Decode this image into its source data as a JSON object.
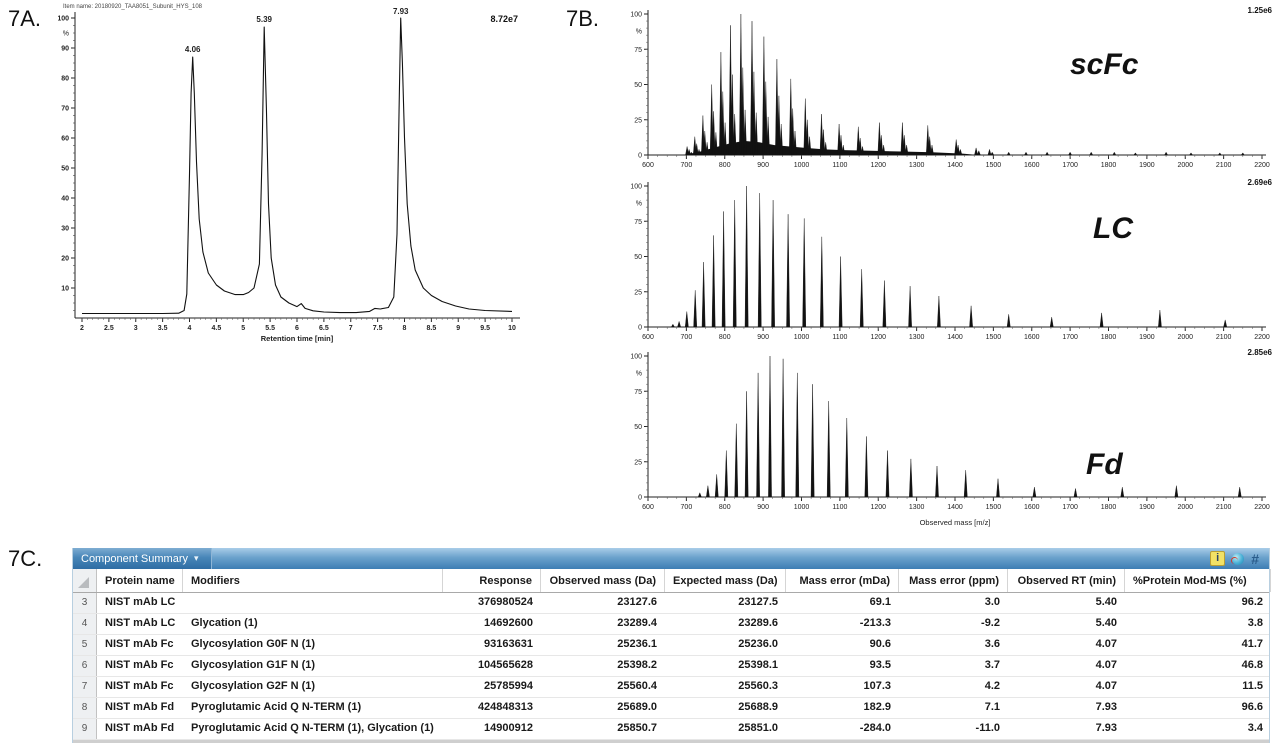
{
  "panels": {
    "a_label": "7A.",
    "b_label": "7B.",
    "c_label": "7C."
  },
  "chart_data": [
    {
      "type": "line",
      "kind": "chromatogram",
      "title": "Item name: 20180920_TAA8051_Subunit_HYS_108",
      "intensity_label": "8.72e7",
      "xlabel": "Retention time [min]",
      "ylabel": "%",
      "xlim": [
        2,
        10
      ],
      "ylim": [
        0,
        100
      ],
      "xticks": [
        2,
        2.5,
        3,
        3.5,
        4,
        4.5,
        5,
        5.5,
        6,
        6.5,
        7,
        7.5,
        8,
        8.5,
        9,
        9.5,
        10
      ],
      "yticks": [
        10,
        20,
        30,
        40,
        50,
        60,
        70,
        80,
        90,
        100
      ],
      "peak_labels": [
        {
          "x": 4.06,
          "y": 87,
          "label": "4.06"
        },
        {
          "x": 5.39,
          "y": 97,
          "label": "5.39"
        },
        {
          "x": 7.93,
          "y": 100,
          "label": "7.93"
        }
      ],
      "points": [
        [
          2.0,
          1.5
        ],
        [
          2.5,
          1.5
        ],
        [
          3.0,
          1.5
        ],
        [
          3.5,
          1.5
        ],
        [
          3.8,
          1.6
        ],
        [
          3.9,
          2.5
        ],
        [
          3.95,
          8
        ],
        [
          4.0,
          48
        ],
        [
          4.03,
          75
        ],
        [
          4.06,
          87
        ],
        [
          4.09,
          75
        ],
        [
          4.13,
          52
        ],
        [
          4.18,
          33
        ],
        [
          4.25,
          22
        ],
        [
          4.35,
          15
        ],
        [
          4.5,
          11
        ],
        [
          4.65,
          9
        ],
        [
          4.85,
          7.8
        ],
        [
          5.0,
          7.8
        ],
        [
          5.1,
          8.5
        ],
        [
          5.2,
          10
        ],
        [
          5.3,
          18
        ],
        [
          5.35,
          55
        ],
        [
          5.39,
          97
        ],
        [
          5.43,
          70
        ],
        [
          5.47,
          38
        ],
        [
          5.52,
          20
        ],
        [
          5.6,
          11
        ],
        [
          5.7,
          7
        ],
        [
          5.85,
          5
        ],
        [
          6.0,
          3.8
        ],
        [
          6.08,
          4.8
        ],
        [
          6.15,
          3.2
        ],
        [
          6.3,
          2.4
        ],
        [
          6.5,
          2.0
        ],
        [
          6.8,
          1.8
        ],
        [
          7.1,
          1.8
        ],
        [
          7.35,
          2.2
        ],
        [
          7.45,
          3.2
        ],
        [
          7.55,
          3.0
        ],
        [
          7.7,
          3.5
        ],
        [
          7.8,
          7
        ],
        [
          7.86,
          28
        ],
        [
          7.9,
          70
        ],
        [
          7.93,
          100
        ],
        [
          7.96,
          85
        ],
        [
          8.0,
          60
        ],
        [
          8.05,
          38
        ],
        [
          8.12,
          24
        ],
        [
          8.2,
          16
        ],
        [
          8.35,
          10
        ],
        [
          8.5,
          7.5
        ],
        [
          8.7,
          5.5
        ],
        [
          8.95,
          4
        ],
        [
          9.2,
          3
        ],
        [
          9.5,
          2.5
        ],
        [
          10.0,
          2.2
        ]
      ]
    },
    {
      "type": "line",
      "kind": "mass_spectrum",
      "name": "scFc",
      "intensity_label": "1.25e6",
      "ylabel": "%",
      "xlim": [
        600,
        2200
      ],
      "ylim": [
        0,
        100
      ],
      "xtick_step": 100,
      "yticks": [
        0,
        25,
        50,
        75,
        100
      ],
      "baseline_hump": [
        [
          690,
          0
        ],
        [
          730,
          2
        ],
        [
          770,
          5
        ],
        [
          810,
          8
        ],
        [
          850,
          10
        ],
        [
          890,
          9
        ],
        [
          930,
          7
        ],
        [
          970,
          6
        ],
        [
          1010,
          5
        ],
        [
          1060,
          4
        ],
        [
          1110,
          3.5
        ],
        [
          1180,
          3
        ],
        [
          1260,
          2.5
        ],
        [
          1340,
          2
        ],
        [
          1420,
          1
        ],
        [
          1460,
          0
        ]
      ],
      "peaks": [
        [
          702,
          6
        ],
        [
          707,
          4
        ],
        [
          713,
          2
        ],
        [
          722,
          13
        ],
        [
          727,
          8
        ],
        [
          733,
          4
        ],
        [
          743,
          28
        ],
        [
          748,
          17
        ],
        [
          754,
          9
        ],
        [
          766,
          50
        ],
        [
          771,
          31
        ],
        [
          777,
          16
        ],
        [
          790,
          73
        ],
        [
          795,
          45
        ],
        [
          801,
          23
        ],
        [
          815,
          92
        ],
        [
          820,
          57
        ],
        [
          826,
          29
        ],
        [
          842,
          100
        ],
        [
          847,
          62
        ],
        [
          853,
          32
        ],
        [
          871,
          95
        ],
        [
          876,
          59
        ],
        [
          882,
          30
        ],
        [
          902,
          84
        ],
        [
          907,
          52
        ],
        [
          913,
          27
        ],
        [
          936,
          68
        ],
        [
          941,
          42
        ],
        [
          947,
          22
        ],
        [
          972,
          54
        ],
        [
          977,
          33
        ],
        [
          983,
          17
        ],
        [
          1010,
          40
        ],
        [
          1015,
          25
        ],
        [
          1021,
          13
        ],
        [
          1052,
          29
        ],
        [
          1057,
          18
        ],
        [
          1063,
          9
        ],
        [
          1098,
          22
        ],
        [
          1103,
          14
        ],
        [
          1109,
          7
        ],
        [
          1148,
          20
        ],
        [
          1153,
          12
        ],
        [
          1159,
          6
        ],
        [
          1203,
          23
        ],
        [
          1208,
          14
        ],
        [
          1214,
          7
        ],
        [
          1263,
          23
        ],
        [
          1268,
          14
        ],
        [
          1274,
          7
        ],
        [
          1329,
          21
        ],
        [
          1334,
          13
        ],
        [
          1340,
          7
        ],
        [
          1403,
          11
        ],
        [
          1408,
          7
        ],
        [
          1414,
          4
        ],
        [
          1455,
          5
        ],
        [
          1462,
          3
        ],
        [
          1490,
          4
        ],
        [
          1497,
          2
        ],
        [
          1540,
          2
        ],
        [
          1585,
          2
        ],
        [
          1640,
          2
        ],
        [
          1700,
          2
        ],
        [
          1755,
          2
        ],
        [
          1815,
          2
        ],
        [
          1870,
          1.5
        ],
        [
          1950,
          2
        ],
        [
          2015,
          1.5
        ],
        [
          2090,
          1.5
        ],
        [
          2150,
          1.5
        ]
      ]
    },
    {
      "type": "line",
      "kind": "mass_spectrum",
      "name": "LC",
      "intensity_label": "2.69e6",
      "ylabel": "%",
      "xlim": [
        600,
        2200
      ],
      "ylim": [
        0,
        100
      ],
      "xtick_step": 100,
      "yticks": [
        0,
        25,
        50,
        75,
        100
      ],
      "peaks": [
        [
          665,
          2
        ],
        [
          681,
          4
        ],
        [
          701,
          11
        ],
        [
          723,
          26
        ],
        [
          745,
          46
        ],
        [
          771,
          65
        ],
        [
          797,
          82
        ],
        [
          826,
          90
        ],
        [
          857,
          100
        ],
        [
          891,
          95
        ],
        [
          926,
          90
        ],
        [
          965,
          80
        ],
        [
          1007,
          77
        ],
        [
          1053,
          64
        ],
        [
          1102,
          50
        ],
        [
          1157,
          41
        ],
        [
          1216,
          33
        ],
        [
          1283,
          29
        ],
        [
          1358,
          22
        ],
        [
          1442,
          15
        ],
        [
          1540,
          9
        ],
        [
          1652,
          7
        ],
        [
          1782,
          10
        ],
        [
          1934,
          12
        ],
        [
          2104,
          5
        ]
      ]
    },
    {
      "type": "line",
      "kind": "mass_spectrum",
      "name": "Fd",
      "intensity_label": "2.85e6",
      "xlabel": "Observed mass [m/z]",
      "ylabel": "%",
      "xlim": [
        600,
        2200
      ],
      "ylim": [
        0,
        100
      ],
      "xtick_step": 100,
      "yticks": [
        0,
        25,
        50,
        75,
        100
      ],
      "peaks": [
        [
          735,
          3
        ],
        [
          756,
          8
        ],
        [
          779,
          16
        ],
        [
          804,
          33
        ],
        [
          830,
          52
        ],
        [
          857,
          75
        ],
        [
          887,
          88
        ],
        [
          918,
          100
        ],
        [
          952,
          98
        ],
        [
          989,
          88
        ],
        [
          1029,
          80
        ],
        [
          1071,
          68
        ],
        [
          1118,
          56
        ],
        [
          1169,
          43
        ],
        [
          1224,
          33
        ],
        [
          1285,
          27
        ],
        [
          1353,
          22
        ],
        [
          1428,
          19
        ],
        [
          1512,
          13
        ],
        [
          1607,
          7
        ],
        [
          1714,
          6
        ],
        [
          1836,
          7
        ],
        [
          1977,
          8
        ],
        [
          2142,
          7
        ]
      ]
    },
    {
      "type": "table",
      "kind": "component_summary",
      "note": "see table key"
    }
  ],
  "table": {
    "title": "Component Summary",
    "title_arrow": "▾",
    "hash_symbol": "#",
    "info_glyph": "i",
    "headers": [
      "Protein name",
      "Modifiers",
      "Response",
      "Observed mass (Da)",
      "Expected mass (Da)",
      "Mass error (mDa)",
      "Mass error (ppm)",
      "Observed RT (min)",
      "%Protein Mod-MS (%)"
    ],
    "rows": [
      {
        "num": "3",
        "protein": "NIST mAb LC",
        "modifiers": "",
        "response": "376980524",
        "observed": "23127.6",
        "expected": "23127.5",
        "err_mda": "69.1",
        "err_ppm": "3.0",
        "rt": "5.40",
        "pct": "96.2"
      },
      {
        "num": "4",
        "protein": "NIST mAb LC",
        "modifiers": "Glycation (1)",
        "response": "14692600",
        "observed": "23289.4",
        "expected": "23289.6",
        "err_mda": "-213.3",
        "err_ppm": "-9.2",
        "rt": "5.40",
        "pct": "3.8"
      },
      {
        "num": "5",
        "protein": "NIST mAb Fc",
        "modifiers": "Glycosylation G0F N (1)",
        "response": "93163631",
        "observed": "25236.1",
        "expected": "25236.0",
        "err_mda": "90.6",
        "err_ppm": "3.6",
        "rt": "4.07",
        "pct": "41.7"
      },
      {
        "num": "6",
        "protein": "NIST mAb Fc",
        "modifiers": "Glycosylation G1F N (1)",
        "response": "104565628",
        "observed": "25398.2",
        "expected": "25398.1",
        "err_mda": "93.5",
        "err_ppm": "3.7",
        "rt": "4.07",
        "pct": "46.8"
      },
      {
        "num": "7",
        "protein": "NIST mAb Fc",
        "modifiers": "Glycosylation G2F N (1)",
        "response": "25785994",
        "observed": "25560.4",
        "expected": "25560.3",
        "err_mda": "107.3",
        "err_ppm": "4.2",
        "rt": "4.07",
        "pct": "11.5"
      },
      {
        "num": "8",
        "protein": "NIST mAb Fd",
        "modifiers": "Pyroglutamic Acid Q N-TERM (1)",
        "response": "424848313",
        "observed": "25689.0",
        "expected": "25688.9",
        "err_mda": "182.9",
        "err_ppm": "7.1",
        "rt": "7.93",
        "pct": "96.6"
      },
      {
        "num": "9",
        "protein": "NIST mAb Fd",
        "modifiers": "Pyroglutamic Acid Q N-TERM (1), Glycation (1)",
        "response": "14900912",
        "observed": "25850.7",
        "expected": "25851.0",
        "err_mda": "-284.0",
        "err_ppm": "-11.0",
        "rt": "7.93",
        "pct": "3.4"
      }
    ]
  }
}
